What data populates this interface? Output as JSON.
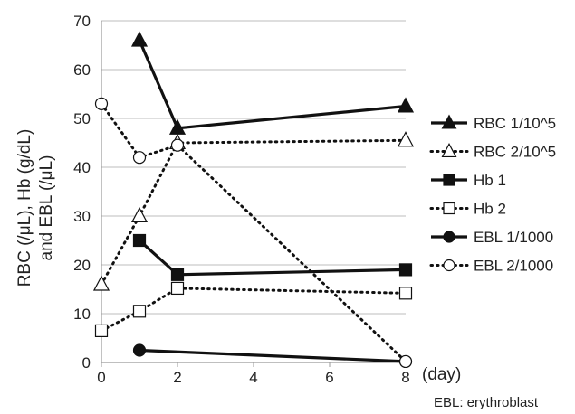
{
  "chart_data": {
    "type": "line",
    "ylabel_line1": "RBC (/μL), Hb (g/dL)",
    "ylabel_line2": "and EBL (/μL)",
    "xlabel": "(day)",
    "note": "EBL: erythroblast",
    "xlim": [
      0,
      8
    ],
    "ylim": [
      0,
      70
    ],
    "x_ticks": [
      0,
      2,
      4,
      6,
      8
    ],
    "y_ticks": [
      0,
      10,
      20,
      30,
      40,
      50,
      60,
      70
    ],
    "grid": "horizontal",
    "legend_position": "right",
    "series": [
      {
        "name": "RBC 1/10^5",
        "marker": "triangle",
        "fill": "filled",
        "line": "solid",
        "x": [
          1,
          2,
          8
        ],
        "y": [
          66,
          48,
          52.5
        ]
      },
      {
        "name": "RBC 2/10^5",
        "marker": "triangle",
        "fill": "open",
        "line": "dotted",
        "x": [
          0,
          1,
          2,
          8
        ],
        "y": [
          16,
          30,
          45,
          45.5
        ]
      },
      {
        "name": "Hb 1",
        "marker": "square",
        "fill": "filled",
        "line": "solid",
        "x": [
          1,
          2,
          8
        ],
        "y": [
          25,
          18,
          19
        ]
      },
      {
        "name": "Hb 2",
        "marker": "square",
        "fill": "open",
        "line": "dotted",
        "x": [
          0,
          1,
          2,
          8
        ],
        "y": [
          6.5,
          10.5,
          15.2,
          14.2
        ]
      },
      {
        "name": "EBL 1/1000",
        "marker": "circle",
        "fill": "filled",
        "line": "solid",
        "x": [
          1,
          8
        ],
        "y": [
          2.5,
          0.2
        ]
      },
      {
        "name": "EBL 2/1000",
        "marker": "circle",
        "fill": "open",
        "line": "dotted",
        "x": [
          0,
          1,
          2,
          8
        ],
        "y": [
          53,
          42,
          44.5,
          0.2
        ]
      }
    ]
  }
}
